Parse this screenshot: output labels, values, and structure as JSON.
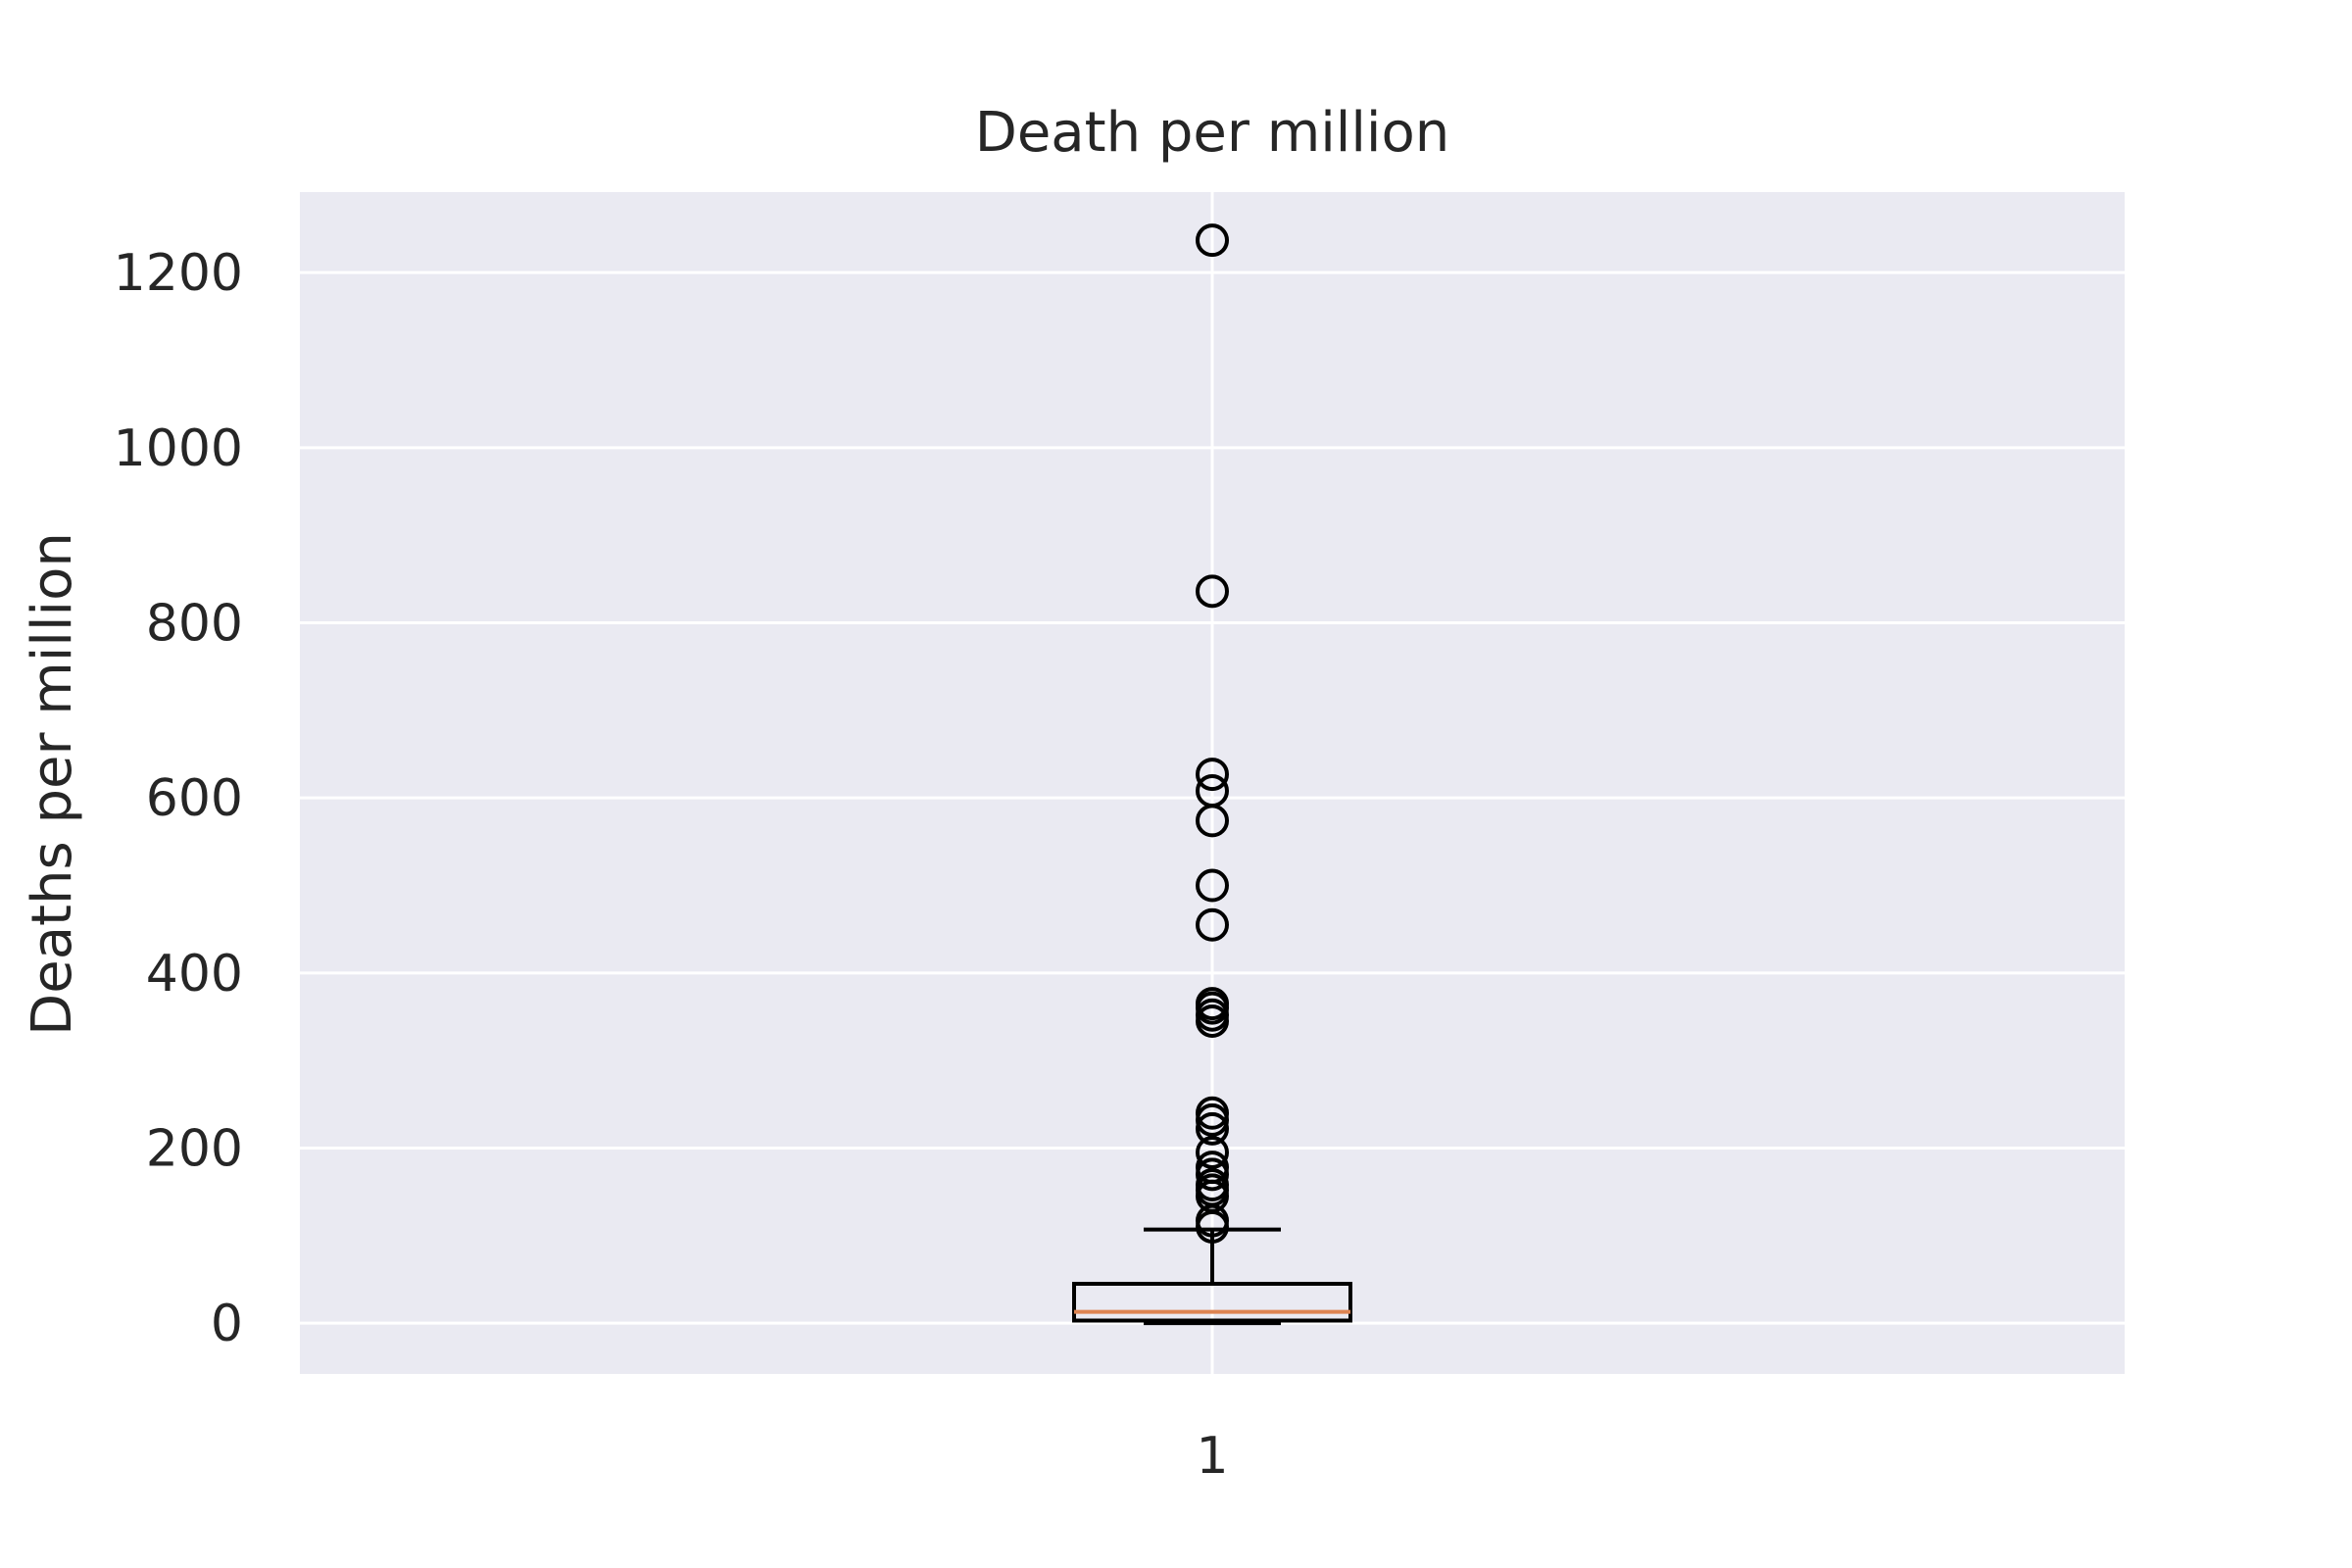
{
  "chart_data": {
    "type": "box",
    "title": "Death per million",
    "xlabel": "",
    "ylabel": "Deaths per million",
    "categories": [
      "1"
    ],
    "yticks": [
      "0",
      "200",
      "400",
      "600",
      "800",
      "1000",
      "1200"
    ],
    "ylim": [
      -58,
      1292
    ],
    "grid": true,
    "legend": "none",
    "boxes": [
      {
        "category": "1",
        "whisker_low": 0,
        "q1": 3,
        "median": 13,
        "q3": 45,
        "whisker_high": 107,
        "outliers": [
          1237,
          836,
          627,
          608,
          574,
          500,
          455,
          365,
          360,
          352,
          345,
          240,
          232,
          222,
          195,
          178,
          170,
          158,
          152,
          145,
          117,
          110
        ]
      }
    ],
    "colors": {
      "plot_background": "#eaeaf2",
      "grid": "#ffffff",
      "box": "#000000",
      "median": "#dd8452",
      "text": "#262626"
    }
  }
}
